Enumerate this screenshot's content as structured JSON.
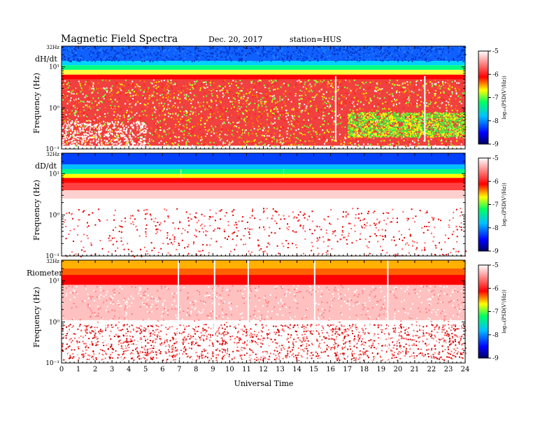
{
  "header": {
    "title": "Magnetic  Field  Spectra",
    "date": "Dec. 20, 2017",
    "station": "station=HUS"
  },
  "chart_data": [
    {
      "type": "heatmap",
      "panel_label": "dH/dt",
      "ylabel": "Frequency  (Hz)",
      "xlabel": "",
      "x_ticks": [
        "0",
        "1",
        "2",
        "3",
        "4",
        "5",
        "6",
        "7",
        "8",
        "9",
        "10",
        "11",
        "12",
        "13",
        "14",
        "15",
        "16",
        "17",
        "18",
        "19",
        "20",
        "21",
        "22",
        "23",
        "24"
      ],
      "y_ticks": [
        {
          "value": 0.1,
          "label": "10⁻¹"
        },
        {
          "value": 1,
          "label": "10⁰"
        },
        {
          "value": 10,
          "label": "10¹"
        },
        {
          "value": 32,
          "label": "32Hz"
        }
      ],
      "xlim": [
        0,
        24
      ],
      "ylim": [
        0.1,
        32
      ],
      "yscale": "log",
      "colorbar": {
        "label": "log₁₀(PSD(V²/Hz))",
        "min": -9,
        "max": -5,
        "ticks": [
          "-5",
          "-6",
          "-7",
          "-8",
          "-9"
        ]
      }
    },
    {
      "type": "heatmap",
      "panel_label": "dD/dt",
      "ylabel": "Frequency  (Hz)",
      "xlabel": "",
      "x_ticks": [
        "0",
        "1",
        "2",
        "3",
        "4",
        "5",
        "6",
        "7",
        "8",
        "9",
        "10",
        "11",
        "12",
        "13",
        "14",
        "15",
        "16",
        "17",
        "18",
        "19",
        "20",
        "21",
        "22",
        "23",
        "24"
      ],
      "y_ticks": [
        {
          "value": 0.1,
          "label": "10⁻¹"
        },
        {
          "value": 1,
          "label": "10⁰"
        },
        {
          "value": 10,
          "label": "10¹"
        },
        {
          "value": 32,
          "label": "32Hz"
        }
      ],
      "xlim": [
        0,
        24
      ],
      "ylim": [
        0.1,
        32
      ],
      "yscale": "log",
      "colorbar": {
        "label": "log₁₀(PSD(V²/Hz))",
        "min": -9,
        "max": -5,
        "ticks": [
          "-5",
          "-6",
          "-7",
          "-8",
          "-9"
        ]
      }
    },
    {
      "type": "heatmap",
      "panel_label": "Riometer",
      "ylabel": "Frequency  (Hz)",
      "xlabel": "Universal  Time",
      "x_ticks": [
        "0",
        "1",
        "2",
        "3",
        "4",
        "5",
        "6",
        "7",
        "8",
        "9",
        "10",
        "11",
        "12",
        "13",
        "14",
        "15",
        "16",
        "17",
        "18",
        "19",
        "20",
        "21",
        "22",
        "23",
        "24"
      ],
      "y_ticks": [
        {
          "value": 0.1,
          "label": "10⁻¹"
        },
        {
          "value": 1,
          "label": "10⁰"
        },
        {
          "value": 10,
          "label": "10¹"
        },
        {
          "value": 32,
          "label": "32Hz"
        }
      ],
      "xlim": [
        0,
        24
      ],
      "ylim": [
        0.1,
        32
      ],
      "yscale": "log",
      "colorbar": {
        "label": "log₁₀(PSD(V²/Hz))",
        "min": -9,
        "max": -5,
        "ticks": [
          "-5",
          "-6",
          "-7",
          "-8",
          "-9"
        ]
      }
    }
  ],
  "colors": {
    "scale": [
      "#000070",
      "#0000ff",
      "#00b0ff",
      "#00ff80",
      "#ffff00",
      "#ff0000",
      "#ffffff"
    ]
  }
}
